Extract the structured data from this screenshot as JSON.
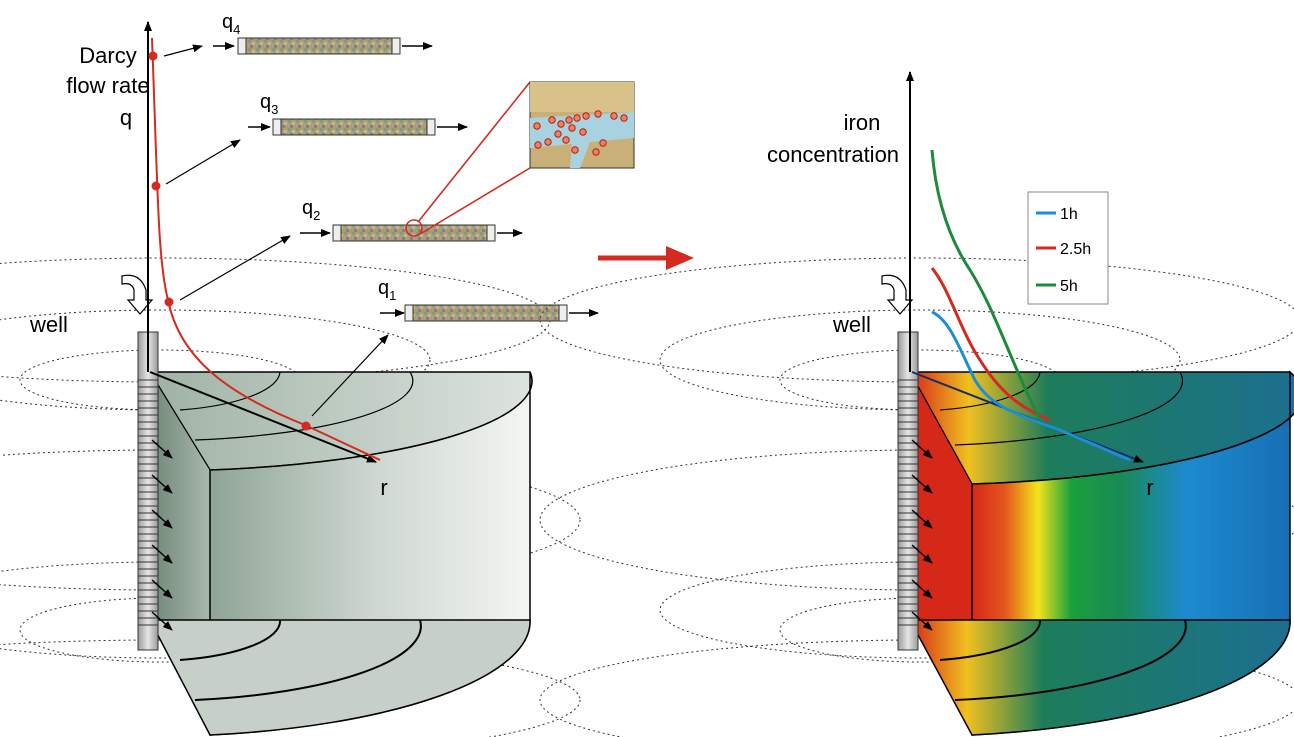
{
  "left_panel": {
    "y_label_line1": "Darcy",
    "y_label_line2": "flow rate",
    "y_label_line3": "q",
    "well_label": "well",
    "axis_r_label": "r",
    "columns": [
      {
        "base": "q",
        "sub": "4"
      },
      {
        "base": "q",
        "sub": "3"
      },
      {
        "base": "q",
        "sub": "2"
      },
      {
        "base": "q",
        "sub": "1"
      }
    ]
  },
  "right_panel": {
    "y_label_line1": "iron",
    "y_label_line2": "concentration",
    "well_label": "well",
    "axis_r_label": "r",
    "legend": [
      {
        "label": "1h",
        "color": "#1a8fd6"
      },
      {
        "label": "2.5h",
        "color": "#d42a20"
      },
      {
        "label": "5h",
        "color": "#1e8a3c"
      }
    ]
  },
  "colors": {
    "curve_red": "#d42a20",
    "transition_arrow": "#d42a20",
    "grey_block": "#b7c4bb"
  }
}
